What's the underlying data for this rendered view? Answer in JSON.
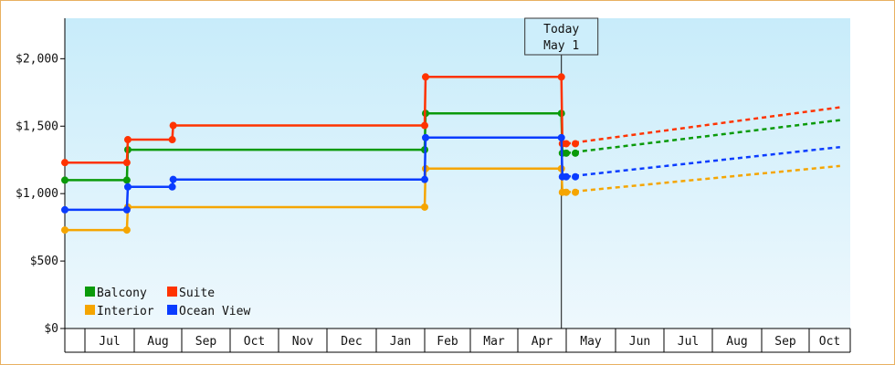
{
  "chart_data": {
    "type": "line",
    "title": "",
    "xlabel": "",
    "ylabel": "",
    "ylim": [
      0,
      2300
    ],
    "y_ticks": [
      {
        "value": 0,
        "label": "$0"
      },
      {
        "value": 500,
        "label": "$500"
      },
      {
        "value": 1000,
        "label": "$1,000"
      },
      {
        "value": 1500,
        "label": "$1,500"
      },
      {
        "value": 2000,
        "label": "$2,000"
      }
    ],
    "x_months": [
      {
        "label": "Jul",
        "start": 0,
        "end": 1
      },
      {
        "label": "Aug",
        "start": 1,
        "end": 2
      },
      {
        "label": "Sep",
        "start": 2,
        "end": 3
      },
      {
        "label": "Oct",
        "start": 3,
        "end": 4
      },
      {
        "label": "Nov",
        "start": 4,
        "end": 5
      },
      {
        "label": "Dec",
        "start": 5,
        "end": 6
      },
      {
        "label": "Jan",
        "start": 6,
        "end": 7
      },
      {
        "label": "Feb",
        "start": 7,
        "end": 8
      },
      {
        "label": "Mar",
        "start": 8,
        "end": 9
      },
      {
        "label": "Apr",
        "start": 9,
        "end": 10
      },
      {
        "label": "May",
        "start": 10,
        "end": 11
      },
      {
        "label": "Jun",
        "start": 11,
        "end": 12
      },
      {
        "label": "Jul",
        "start": 12,
        "end": 13
      },
      {
        "label": "Aug",
        "start": 13,
        "end": 14
      },
      {
        "label": "Sep",
        "start": 14,
        "end": 15
      },
      {
        "label": "Oct",
        "start": 15,
        "end": 16
      }
    ],
    "today": {
      "line1": "Today",
      "line2": "May 1",
      "x": 9.9
    },
    "grid": false,
    "legend_placement": "bottom-left",
    "series": [
      {
        "name": "Balcony",
        "color": "#0a9a0a",
        "points": [
          [
            -0.45,
            1100
          ],
          [
            0.85,
            1100
          ],
          [
            0.87,
            1325
          ],
          [
            7.0,
            1325
          ],
          [
            7.02,
            1595
          ],
          [
            9.9,
            1595
          ],
          [
            9.92,
            1300
          ],
          [
            10.0,
            1300
          ]
        ],
        "forecast": [
          [
            10.0,
            1300
          ],
          [
            15.75,
            1545
          ]
        ]
      },
      {
        "name": "Suite",
        "color": "#ff3300",
        "points": [
          [
            -0.45,
            1230
          ],
          [
            0.85,
            1230
          ],
          [
            0.87,
            1400
          ],
          [
            1.8,
            1400
          ],
          [
            1.82,
            1505
          ],
          [
            7.0,
            1505
          ],
          [
            7.02,
            1865
          ],
          [
            9.9,
            1865
          ],
          [
            9.92,
            1370
          ],
          [
            10.0,
            1370
          ]
        ],
        "forecast": [
          [
            10.0,
            1370
          ],
          [
            15.75,
            1640
          ]
        ]
      },
      {
        "name": "Interior",
        "color": "#f5a500",
        "points": [
          [
            -0.45,
            730
          ],
          [
            0.85,
            730
          ],
          [
            0.87,
            900
          ],
          [
            7.0,
            900
          ],
          [
            7.02,
            1185
          ],
          [
            9.9,
            1185
          ],
          [
            9.92,
            1010
          ],
          [
            10.0,
            1010
          ]
        ],
        "forecast": [
          [
            10.0,
            1010
          ],
          [
            15.75,
            1205
          ]
        ]
      },
      {
        "name": "Ocean View",
        "color": "#0a3cff",
        "points": [
          [
            -0.45,
            880
          ],
          [
            0.85,
            880
          ],
          [
            0.87,
            1050
          ],
          [
            1.8,
            1050
          ],
          [
            1.82,
            1105
          ],
          [
            7.0,
            1105
          ],
          [
            7.02,
            1415
          ],
          [
            9.9,
            1415
          ],
          [
            9.92,
            1125
          ],
          [
            10.0,
            1125
          ]
        ],
        "forecast": [
          [
            10.0,
            1125
          ],
          [
            15.75,
            1345
          ]
        ]
      }
    ],
    "legend": [
      {
        "name": "Balcony",
        "color": "#0a9a0a"
      },
      {
        "name": "Suite",
        "color": "#ff3300"
      },
      {
        "name": "Interior",
        "color": "#f5a500"
      },
      {
        "name": "Ocean View",
        "color": "#0a3cff"
      }
    ]
  }
}
